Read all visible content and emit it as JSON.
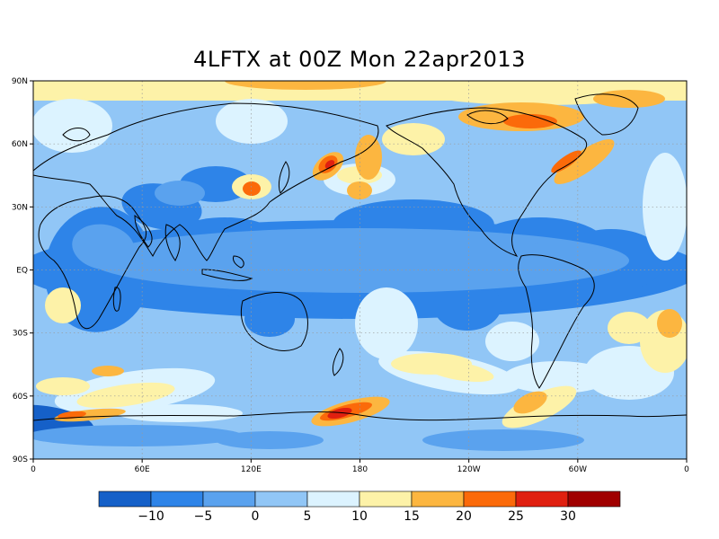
{
  "title": "4LFTX at 00Z Mon 22apr2013",
  "map": {
    "lat_ticks": [
      {
        "lat": 90,
        "label": "90N"
      },
      {
        "lat": 60,
        "label": "60N"
      },
      {
        "lat": 30,
        "label": "30N"
      },
      {
        "lat": 0,
        "label": "EQ"
      },
      {
        "lat": -30,
        "label": "30S"
      },
      {
        "lat": -60,
        "label": "60S"
      },
      {
        "lat": -90,
        "label": "90S"
      }
    ],
    "lon_ticks": [
      {
        "lon": 0,
        "label": "0"
      },
      {
        "lon": 60,
        "label": "60E"
      },
      {
        "lon": 120,
        "label": "120E"
      },
      {
        "lon": 180,
        "label": "180"
      },
      {
        "lon": 240,
        "label": "120W"
      },
      {
        "lon": 300,
        "label": "60W"
      },
      {
        "lon": 360,
        "label": "0"
      }
    ],
    "grid": true
  },
  "colorbar": {
    "colors": [
      "#1560c8",
      "#2e84e8",
      "#5aa2ee",
      "#91c6f6",
      "#dcf3ff",
      "#fdf2a8",
      "#fcb640",
      "#fb6a0a",
      "#e02010",
      "#a00000"
    ],
    "labels": [
      "−10",
      "−5",
      "0",
      "5",
      "10",
      "15",
      "20",
      "25",
      "30"
    ]
  }
}
